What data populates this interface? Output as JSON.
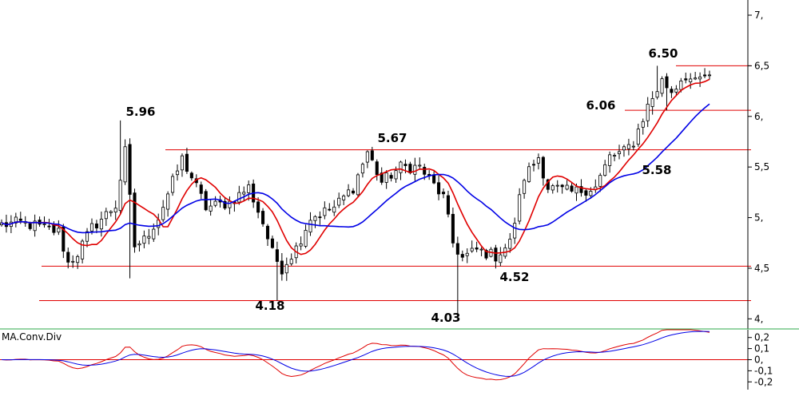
{
  "chart_data": [
    {
      "type": "candlestick",
      "price_axis": {
        "ticks": [
          {
            "value": 7.0,
            "label": "7,"
          },
          {
            "value": 6.5,
            "label": "6,5"
          },
          {
            "value": 6.0,
            "label": "6,"
          },
          {
            "value": 5.5,
            "label": "5,5"
          },
          {
            "value": 5.0,
            "label": "5,"
          },
          {
            "value": 4.5,
            "label": "4,5"
          },
          {
            "value": 4.0,
            "label": "4,"
          }
        ],
        "ylim": [
          3.9,
          7.15
        ]
      },
      "candles": {
        "count": 150,
        "anchors": [
          [
            0,
            4.93
          ],
          [
            4,
            4.95
          ],
          [
            8,
            4.91
          ],
          [
            12,
            4.86
          ],
          [
            14,
            4.55
          ],
          [
            16,
            4.65
          ],
          [
            19,
            4.9
          ],
          [
            24,
            5.12
          ],
          [
            26,
            5.65
          ],
          [
            28,
            4.72
          ],
          [
            30,
            4.78
          ],
          [
            33,
            5.0
          ],
          [
            36,
            5.35
          ],
          [
            38,
            5.58
          ],
          [
            40,
            5.4
          ],
          [
            43,
            5.1
          ],
          [
            48,
            5.15
          ],
          [
            52,
            5.3
          ],
          [
            55,
            4.95
          ],
          [
            57,
            4.65
          ],
          [
            59,
            4.5
          ],
          [
            62,
            4.7
          ],
          [
            65,
            5.0
          ],
          [
            70,
            5.1
          ],
          [
            74,
            5.3
          ],
          [
            77,
            5.65
          ],
          [
            80,
            5.35
          ],
          [
            84,
            5.5
          ],
          [
            88,
            5.5
          ],
          [
            93,
            5.2
          ],
          [
            95,
            4.75
          ],
          [
            97,
            4.6
          ],
          [
            100,
            4.68
          ],
          [
            104,
            4.62
          ],
          [
            107,
            4.75
          ],
          [
            110,
            5.4
          ],
          [
            113,
            5.6
          ],
          [
            115,
            5.3
          ],
          [
            120,
            5.25
          ],
          [
            125,
            5.3
          ],
          [
            128,
            5.6
          ],
          [
            131,
            5.65
          ],
          [
            133,
            5.75
          ],
          [
            136,
            6.1
          ],
          [
            139,
            6.35
          ],
          [
            141,
            6.25
          ],
          [
            143,
            6.35
          ]
        ],
        "special": [
          {
            "index": 25,
            "high": 5.96
          },
          {
            "index": 27,
            "low": 4.4
          },
          {
            "index": 58,
            "low": 4.18
          },
          {
            "index": 96,
            "low": 4.03
          },
          {
            "index": 105,
            "low": 4.52
          },
          {
            "index": 138,
            "high": 6.5
          },
          {
            "index": 140,
            "low": 6.06
          }
        ]
      },
      "moving_averages": [
        {
          "periods": 8,
          "color": "#e00000"
        },
        {
          "periods": 21,
          "color": "#0000e6"
        }
      ],
      "levels": [
        {
          "value": 6.5,
          "label": "6.50",
          "color": "#e00000"
        },
        {
          "value": 6.06,
          "label": "6.06",
          "color": "#e00000"
        },
        {
          "value": 5.67,
          "label": "5.67",
          "color": "#e00000"
        },
        {
          "value": 4.52,
          "label": "4.52",
          "color": "#e00000"
        },
        {
          "value": 4.18,
          "label": "4.18",
          "color": "#e00000"
        }
      ],
      "annotations": [
        {
          "label": "5.96",
          "value": 5.96
        },
        {
          "label": "5.67",
          "value": 5.67
        },
        {
          "label": "6.50",
          "value": 6.5
        },
        {
          "label": "6.06",
          "value": 6.06
        },
        {
          "label": "5.58",
          "value": 5.58
        },
        {
          "label": "4.18",
          "value": 4.18
        },
        {
          "label": "4.03",
          "value": 4.03
        },
        {
          "label": "4.52",
          "value": 4.52
        }
      ]
    },
    {
      "type": "line",
      "title": "MA.Conv.Div",
      "y_axis": {
        "ticks": [
          {
            "value": 0.2,
            "label": "0,2"
          },
          {
            "value": 0.1,
            "label": "0,1"
          },
          {
            "value": 0.0,
            "label": "0,"
          },
          {
            "value": -0.1,
            "label": "-0,1"
          },
          {
            "value": -0.2,
            "label": "-0,2"
          }
        ],
        "ylim": [
          -0.27,
          0.27
        ]
      },
      "zero_line_color": "#e00000",
      "series": [
        {
          "color": "#e00000"
        },
        {
          "color": "#0000e6"
        }
      ]
    }
  ]
}
